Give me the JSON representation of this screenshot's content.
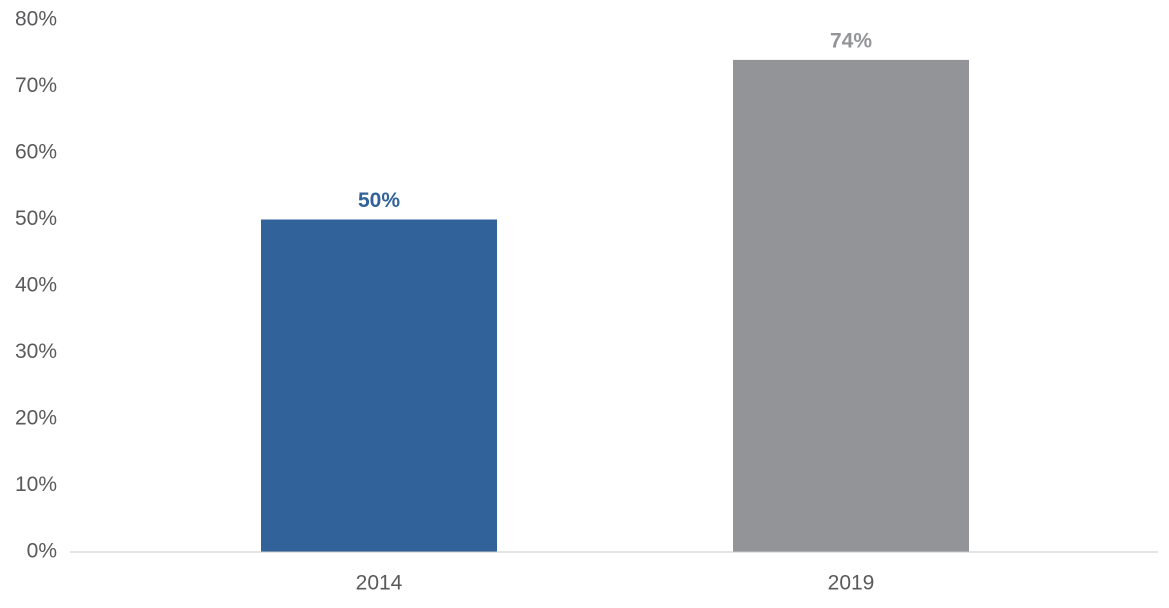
{
  "chart_data": {
    "type": "bar",
    "categories": [
      "2014",
      "2019"
    ],
    "values": [
      50,
      74
    ],
    "value_labels": [
      "50%",
      "74%"
    ],
    "colors": [
      "#31629a",
      "#939497"
    ],
    "ylim": [
      0,
      80
    ],
    "yticks": [
      {
        "value": 0,
        "label": "0%"
      },
      {
        "value": 10,
        "label": "10%"
      },
      {
        "value": 20,
        "label": "20%"
      },
      {
        "value": 30,
        "label": "30%"
      },
      {
        "value": 40,
        "label": "40%"
      },
      {
        "value": 50,
        "label": "50%"
      },
      {
        "value": 60,
        "label": "60%"
      },
      {
        "value": 70,
        "label": "70%"
      },
      {
        "value": 80,
        "label": "80%"
      }
    ],
    "grid": false
  }
}
